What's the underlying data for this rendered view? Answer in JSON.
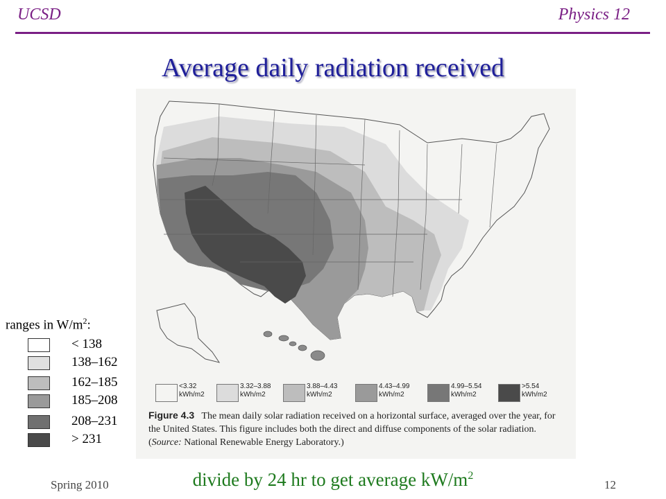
{
  "header": {
    "left": "UCSD",
    "right": "Physics 12"
  },
  "title": "Average daily radiation received",
  "figure": {
    "legend": [
      {
        "value": "<3.32",
        "unit": "kWh/m2",
        "color": "#f4f4f2"
      },
      {
        "value": "3.32–3.88",
        "unit": "kWh/m2",
        "color": "#dcdcdc"
      },
      {
        "value": "3.88–4.43",
        "unit": "kWh/m2",
        "color": "#bdbdbd"
      },
      {
        "value": "4.43–4.99",
        "unit": "kWh/m2",
        "color": "#9a9a9a"
      },
      {
        "value": "4.99–5.54",
        "unit": "kWh/m2",
        "color": "#777777"
      },
      {
        "value": ">5.54",
        "unit": "kWh/m2",
        "color": "#4a4a4a"
      }
    ],
    "caption_label": "Figure 4.3",
    "caption_text": "The mean daily solar radiation received on a horizontal surface, averaged over the year, for the United States. This figure includes both the direct and diffuse components of the solar radiation.",
    "caption_source_label": "Source:",
    "caption_source": "National Renewable Energy Laboratory.)"
  },
  "left_legend": {
    "title": "ranges in W/m",
    "title_sup": "2",
    "title_suffix": ":",
    "items": [
      {
        "label": "< 138",
        "color": "#ffffff"
      },
      {
        "label": "138–162",
        "color": "#e0e0e0"
      },
      {
        "label": "162–185",
        "color": "#bdbdbd"
      },
      {
        "label": "185–208",
        "color": "#9a9a9a"
      },
      {
        "label": "208–231",
        "color": "#707070"
      },
      {
        "label": "> 231",
        "color": "#4a4a4a"
      }
    ]
  },
  "footer": {
    "left": "Spring 2010",
    "center": "divide by 24 hr to get average kW/m",
    "center_sup": "2",
    "right": "12"
  }
}
